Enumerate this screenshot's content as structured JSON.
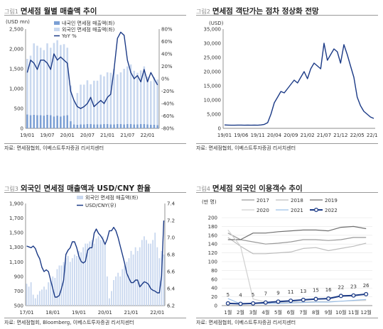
{
  "panels": [
    {
      "num": "그림1",
      "title": "면세점 월별 매출액 추이",
      "source": "자료: 면세점협회, 이베스트투자증권 리서치센터",
      "chart_data": {
        "type": "bar",
        "unit": "(USD mn)",
        "x": [
          "19/01",
          "19/02",
          "19/03",
          "19/04",
          "19/05",
          "19/06",
          "19/07",
          "19/08",
          "19/09",
          "19/10",
          "19/11",
          "19/12",
          "20/01",
          "20/02",
          "20/03",
          "20/04",
          "20/05",
          "20/06",
          "20/07",
          "20/08",
          "20/09",
          "20/10",
          "20/11",
          "20/12",
          "21/01",
          "21/02",
          "21/03",
          "21/04",
          "21/05",
          "21/06",
          "21/07",
          "21/08",
          "21/09",
          "21/10",
          "21/11",
          "21/12",
          "22/01",
          "22/02",
          "22/03",
          "22/04"
        ],
        "xticks": [
          "19/01",
          "19/07",
          "20/01",
          "20/07",
          "21/01",
          "21/07",
          "22/01"
        ],
        "series": [
          {
            "name": "내국인 면세점 매출액(좌)",
            "color": "#7b9fd4",
            "values": [
              350,
              330,
              340,
              330,
              330,
              320,
              340,
              330,
              300,
              320,
              300,
              320,
              330,
              180,
              100,
              90,
              100,
              100,
              110,
              110,
              100,
              100,
              100,
              110,
              110,
              100,
              100,
              110,
              110,
              100,
              110,
              110,
              100,
              100,
              110,
              110,
              100,
              90,
              90,
              80
            ]
          },
          {
            "name": "외국인 면세점 매출액(좌)",
            "color": "#c9d8ef",
            "values": [
              1400,
              1500,
              1800,
              1750,
              1700,
              1650,
              1800,
              1700,
              1850,
              1900,
              1800,
              1800,
              1700,
              900,
              600,
              800,
              1000,
              1000,
              1100,
              1000,
              1100,
              1100,
              1250,
              1200,
              1300,
              1300,
              1400,
              1250,
              1300,
              1400,
              1450,
              1500,
              1350,
              1300,
              1350,
              1450,
              1200,
              1100,
              1200,
              1150
            ]
          },
          {
            "name": "YoY %",
            "color": "#1b3a86",
            "values": [
              10,
              30,
              25,
              15,
              30,
              30,
              25,
              15,
              40,
              30,
              35,
              30,
              25,
              -20,
              -35,
              -45,
              -48,
              -45,
              -40,
              -30,
              -45,
              -40,
              -35,
              -40,
              -30,
              -25,
              15,
              65,
              75,
              70,
              30,
              10,
              0,
              5,
              -5,
              15,
              -5,
              10,
              0,
              -10
            ]
          }
        ],
        "yticks_left": [
          "0",
          "500",
          "1,000",
          "1,500",
          "2,000",
          "2,500"
        ],
        "yticks_right": [
          "-80%",
          "-60%",
          "-40%",
          "-20%",
          "0%",
          "20%",
          "40%",
          "60%",
          "80%"
        ]
      }
    },
    {
      "num": "그림2",
      "title": "면세점 객단가는 점차 정상화 전망",
      "source": "자료: 면세점협회, 이베스트투자증권 리서치센터",
      "chart_data": {
        "type": "line",
        "unit": "(USD)",
        "x": [
          "19/01",
          "19/02",
          "19/03",
          "19/04",
          "19/05",
          "19/06",
          "19/07",
          "19/08",
          "19/09",
          "19/10",
          "19/11",
          "19/12",
          "20/01",
          "20/02",
          "20/03",
          "20/04",
          "20/05",
          "20/06",
          "20/07",
          "20/08",
          "20/09",
          "20/10",
          "20/11",
          "20/12",
          "21/01",
          "21/02",
          "21/03",
          "21/04",
          "21/05",
          "21/06",
          "21/07",
          "21/08",
          "21/09",
          "21/10",
          "21/11",
          "21/12",
          "22/01",
          "22/02",
          "22/03",
          "22/04",
          "22/05",
          "22/06",
          "22/07",
          "22/08",
          "22/09",
          "22/10"
        ],
        "xticks": [
          "19/01",
          "19/06",
          "19/11",
          "20/04",
          "20/09",
          "21/02",
          "21/07",
          "21/12",
          "22/05",
          "22/10"
        ],
        "series": [
          {
            "name": "",
            "color": "#1b3a86",
            "values": [
              1200,
              1150,
              1100,
              1100,
              1150,
              1150,
              1100,
              1150,
              1100,
              1150,
              1100,
              1200,
              1400,
              2000,
              5000,
              9000,
              11000,
              13000,
              12500,
              14000,
              15500,
              17000,
              16000,
              18000,
              20000,
              17500,
              21000,
              23000,
              22000,
              21000,
              30000,
              24000,
              26000,
              28000,
              27000,
              23000,
              29500,
              26000,
              22000,
              18000,
              11000,
              8000,
              6000,
              5000,
              4000,
              3500
            ]
          }
        ],
        "yticks": [
          "0",
          "5,000",
          "10,000",
          "15,000",
          "20,000",
          "25,000",
          "30,000",
          "35,000"
        ]
      }
    },
    {
      "num": "그림3",
      "title": "외국인 면세점 매출액과 USD/CNY 환율",
      "source": "자료: 면세점협회, Bloomberg, 이베스트투자증권 리서치센터",
      "chart_data": {
        "type": "bar",
        "unit": "(USD mn)",
        "x": [
          "17/01",
          "17/02",
          "17/03",
          "17/04",
          "17/05",
          "17/06",
          "17/07",
          "17/08",
          "17/09",
          "17/10",
          "17/11",
          "17/12",
          "18/01",
          "18/02",
          "18/03",
          "18/04",
          "18/05",
          "18/06",
          "18/07",
          "18/08",
          "18/09",
          "18/10",
          "18/11",
          "18/12",
          "19/01",
          "19/02",
          "19/03",
          "19/04",
          "19/05",
          "19/06",
          "19/07",
          "19/08",
          "19/09",
          "19/10",
          "19/11",
          "19/12",
          "20/01",
          "20/02",
          "20/03",
          "20/04",
          "20/05",
          "20/06",
          "20/07",
          "20/08",
          "20/09",
          "20/10",
          "20/11",
          "20/12",
          "21/01",
          "21/02",
          "21/03",
          "21/04",
          "21/05",
          "21/06",
          "21/07",
          "21/08",
          "21/09",
          "21/10",
          "21/11",
          "21/12",
          "22/01",
          "22/02",
          "22/03",
          "22/04"
        ],
        "xticks": [
          "17/01",
          "18/01",
          "19/01",
          "20/01",
          "21/01",
          "22/01"
        ],
        "series": [
          {
            "name": "외국인 면세점 매출액(좌)",
            "color": "#c9d8ef",
            "values": [
              800,
              760,
              820,
              650,
              600,
              650,
              700,
              720,
              760,
              720,
              820,
              850,
              900,
              880,
              1000,
              1050,
              1050,
              1100,
              1150,
              1180,
              1100,
              1150,
              1200,
              1180,
              1250,
              1230,
              1300,
              1350,
              1350,
              1380,
              1400,
              1350,
              1420,
              1450,
              1400,
              1450,
              1350,
              900,
              600,
              700,
              850,
              900,
              950,
              900,
              1000,
              1050,
              1100,
              1150,
              1250,
              1200,
              1300,
              1250,
              1300,
              1400,
              1450,
              1400,
              1350,
              1350,
              1400,
              1500,
              1300,
              1150,
              1250,
              1200
            ]
          },
          {
            "name": "USD/CNY(우)",
            "color": "#1b3a86",
            "values": [
              6.9,
              6.89,
              6.88,
              6.9,
              6.87,
              6.8,
              6.75,
              6.65,
              6.6,
              6.62,
              6.6,
              6.5,
              6.4,
              6.3,
              6.3,
              6.32,
              6.4,
              6.5,
              6.8,
              6.85,
              6.88,
              6.95,
              6.95,
              6.88,
              6.78,
              6.72,
              6.7,
              6.72,
              6.85,
              6.88,
              6.88,
              7.05,
              7.1,
              7.05,
              7.02,
              6.98,
              6.92,
              6.98,
              7.08,
              7.08,
              7.12,
              7.08,
              7.0,
              6.9,
              6.8,
              6.7,
              6.58,
              6.52,
              6.47,
              6.47,
              6.5,
              6.5,
              6.42,
              6.45,
              6.48,
              6.47,
              6.45,
              6.4,
              6.38,
              6.37,
              6.35,
              6.35,
              6.55,
              7.2
            ]
          }
        ],
        "yticks_left": [
          "500",
          "700",
          "900",
          "1,100",
          "1,300",
          "1,500",
          "1,700",
          "1,900"
        ],
        "yticks_right": [
          "6.2",
          "6.4",
          "6.6",
          "6.8",
          "7.0",
          "7.2",
          "7.4"
        ]
      }
    },
    {
      "num": "그림4",
      "title": "면세점 외국인 이용객수 추이",
      "source": "자료: 면세점협회, 이베스트투자증권 리서치센터",
      "chart_data": {
        "type": "line",
        "unit": "(만 명)",
        "categories": [
          "1월",
          "2월",
          "3월",
          "4월",
          "5월",
          "6월",
          "7월",
          "8월",
          "9월",
          "10월",
          "11월",
          "12월"
        ],
        "series": [
          {
            "name": "2017",
            "color": "#9a9a9a",
            "values": [
              165,
              150,
              145,
              140,
              142,
              145,
              150,
              150,
              148,
              150,
              155,
              155
            ]
          },
          {
            "name": "2018",
            "color": "#bdbdbd",
            "values": [
              155,
              135,
              118,
              118,
              120,
              122,
              130,
              132,
              125,
              130,
              135,
              142
            ]
          },
          {
            "name": "2019",
            "color": "#6f6f6f",
            "values": [
              150,
              150,
              165,
              165,
              168,
              170,
              172,
              172,
              170,
              178,
              180,
              175
            ]
          },
          {
            "name": "2020",
            "color": "#d0d0d0",
            "values": [
              172,
              135,
              15,
              8,
              7,
              8,
              8,
              9,
              9,
              10,
              11,
              12
            ]
          },
          {
            "name": "2021",
            "color": "#9cc0e8",
            "values": [
              16,
              4,
              5,
              5,
              5,
              6,
              7,
              8,
              8,
              10,
              12,
              14
            ]
          },
          {
            "name": "2022",
            "color": "#1b3a86",
            "values": [
              5,
              4,
              5,
              7,
              9,
              11,
              13,
              15,
              16,
              22,
              23,
              26
            ],
            "labels": [
              "5",
              "4",
              "5",
              "7",
              "9",
              "11",
              "13",
              "15",
              "16",
              "22",
              "23",
              "26"
            ]
          }
        ],
        "yticks": [
          "0",
          "20",
          "40",
          "60",
          "80",
          "100",
          "120",
          "140",
          "160",
          "180",
          "200"
        ]
      }
    }
  ]
}
